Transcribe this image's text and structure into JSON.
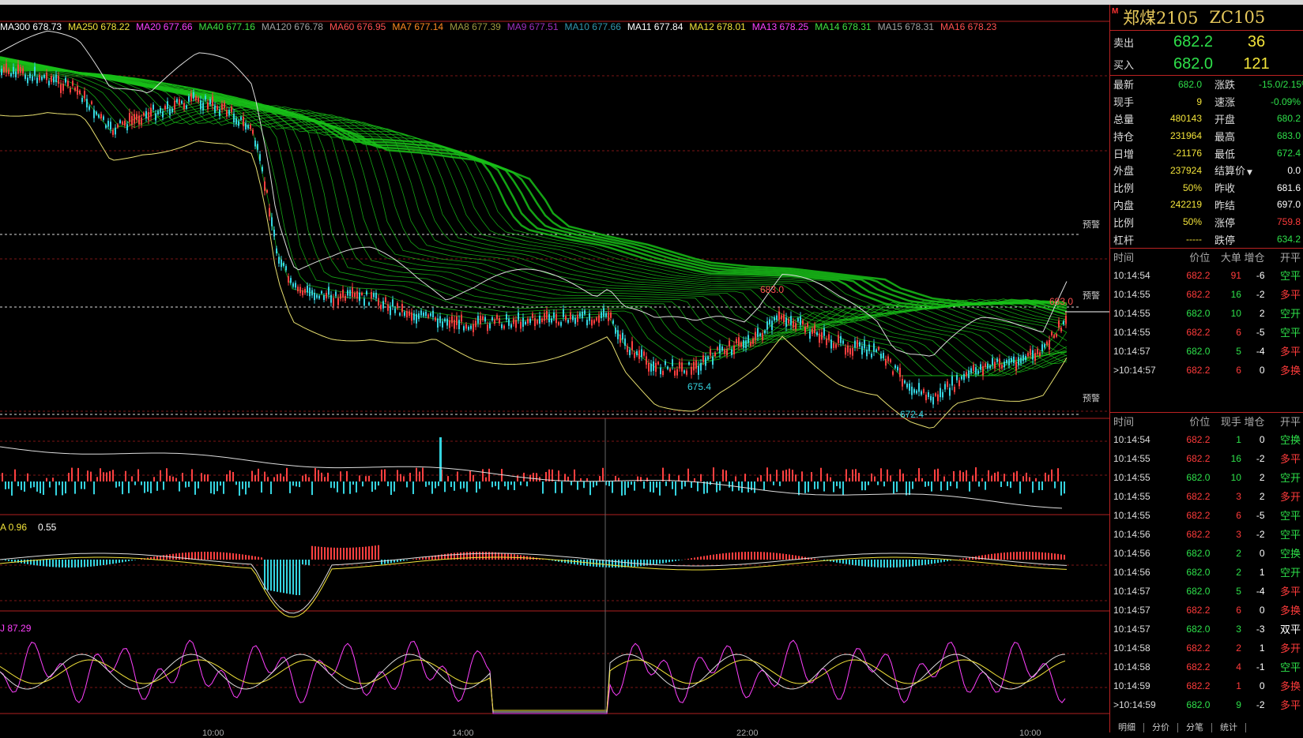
{
  "colors": {
    "background": "#000000",
    "up": "#ff4040",
    "down": "#35d4e0",
    "ma_band": "#18c018",
    "grid": "#b02020",
    "green_text": "#2ee04a",
    "red_text": "#ff3b3b",
    "yellow_text": "#f2e33a"
  },
  "chart": {
    "ma_legend": [
      {
        "label": "MA300 678.73",
        "color": "#ffffff"
      },
      {
        "label": "MA250 678.22",
        "color": "#f2e33a"
      },
      {
        "label": "MA20 677.66",
        "color": "#ff40ff"
      },
      {
        "label": "MA40 677.16",
        "color": "#40e040"
      },
      {
        "label": "MA120 676.78",
        "color": "#a0a0a0"
      },
      {
        "label": "MA60 676.95",
        "color": "#ff5050"
      },
      {
        "label": "MA7 677.14",
        "color": "#ff8a20"
      },
      {
        "label": "MA8 677.39",
        "color": "#a09a40"
      },
      {
        "label": "MA9 677.51",
        "color": "#a030c0"
      },
      {
        "label": "MA10 677.66",
        "color": "#3098b0"
      },
      {
        "label": "MA11 677.84",
        "color": "#ffffff"
      },
      {
        "label": "MA12 678.01",
        "color": "#f2e33a"
      },
      {
        "label": "MA13 678.25",
        "color": "#ff40ff"
      },
      {
        "label": "MA14 678.31",
        "color": "#40e040"
      },
      {
        "label": "MA15 678.31",
        "color": "#a0a0a0"
      },
      {
        "label": "MA16 678.23",
        "color": "#ff5050"
      }
    ],
    "alert_label": "预警",
    "peak_labels": [
      "683.0",
      "675.4",
      "672.4",
      "683.0"
    ],
    "macd_label": "A 0.96",
    "macd_value": "0.55",
    "kdj_label": "J 87.29",
    "time_ticks": [
      "10:00",
      "14:00",
      "22:00",
      "10:00"
    ]
  },
  "sidebar": {
    "marker": "M",
    "name": "郑煤2105",
    "code": "ZC105",
    "sell": {
      "label": "卖出",
      "price": "682.2",
      "vol": "36"
    },
    "buy": {
      "label": "买入",
      "price": "682.0",
      "vol": "121"
    },
    "quote": [
      {
        "l1": "最新",
        "v1": "682.0",
        "c1": "#2ee04a",
        "l2": "涨跌",
        "v2": "-15.0/2.15%",
        "c2": "#2ee04a"
      },
      {
        "l1": "现手",
        "v1": "9",
        "c1": "#f2e33a",
        "l2": "速涨",
        "v2": "-0.09%",
        "c2": "#2ee04a"
      },
      {
        "l1": "总量",
        "v1": "480143",
        "c1": "#f2e33a",
        "l2": "开盘",
        "v2": "680.2",
        "c2": "#2ee04a"
      },
      {
        "l1": "持仓",
        "v1": "231964",
        "c1": "#f2e33a",
        "l2": "最高",
        "v2": "683.0",
        "c2": "#2ee04a"
      },
      {
        "l1": "日增",
        "v1": "-21176",
        "c1": "#f2e33a",
        "l2": "最低",
        "v2": "672.4",
        "c2": "#2ee04a"
      },
      {
        "l1": "外盘",
        "v1": "237924",
        "c1": "#f2e33a",
        "l2": "结算价",
        "v2": "0.0",
        "c2": "#ffffff",
        "dropdown": true
      },
      {
        "l1": "比例",
        "v1": "50%",
        "c1": "#f2e33a",
        "l2": "昨收",
        "v2": "681.6",
        "c2": "#ffffff"
      },
      {
        "l1": "内盘",
        "v1": "242219",
        "c1": "#f2e33a",
        "l2": "昨结",
        "v2": "697.0",
        "c2": "#ffffff"
      },
      {
        "l1": "比例",
        "v1": "50%",
        "c1": "#f2e33a",
        "l2": "涨停",
        "v2": "759.8",
        "c2": "#ff3b3b"
      },
      {
        "l1": "杠杆",
        "v1": "-----",
        "c1": "#f2e33a",
        "l2": "跌停",
        "v2": "634.2",
        "c2": "#2ee04a"
      }
    ],
    "tick_headers": {
      "time": "时间",
      "price": "价位",
      "big": "大单",
      "vol": "现手",
      "chg": "增仓",
      "type": "开平"
    },
    "big_orders": [
      {
        "time": "10:14:54",
        "price": "682.2",
        "vol": "91",
        "chg": "-6",
        "type": "空平",
        "vc": "#ff3b3b"
      },
      {
        "time": "10:14:55",
        "price": "682.2",
        "vol": "16",
        "chg": "-2",
        "type": "多平",
        "vc": "#2ee04a"
      },
      {
        "time": "10:14:55",
        "price": "682.0",
        "vol": "10",
        "chg": "2",
        "type": "空开",
        "vc": "#2ee04a"
      },
      {
        "time": "10:14:55",
        "price": "682.2",
        "vol": "6",
        "chg": "-5",
        "type": "空平",
        "vc": "#ff3b3b"
      },
      {
        "time": "10:14:57",
        "price": "682.0",
        "vol": "5",
        "chg": "-4",
        "type": "多平",
        "vc": "#2ee04a"
      },
      {
        "time": ">10:14:57",
        "price": "682.2",
        "vol": "6",
        "chg": "0",
        "type": "多换",
        "vc": "#ff3b3b"
      }
    ],
    "ticks": [
      {
        "time": "10:14:54",
        "price": "682.2",
        "vol": "1",
        "chg": "0",
        "type": "空换",
        "vc": "#2ee04a"
      },
      {
        "time": "10:14:55",
        "price": "682.2",
        "vol": "16",
        "chg": "-2",
        "type": "多平",
        "vc": "#2ee04a"
      },
      {
        "time": "10:14:55",
        "price": "682.0",
        "vol": "10",
        "chg": "2",
        "type": "空开",
        "vc": "#2ee04a"
      },
      {
        "time": "10:14:55",
        "price": "682.2",
        "vol": "3",
        "chg": "2",
        "type": "多开",
        "vc": "#ff3b3b"
      },
      {
        "time": "10:14:55",
        "price": "682.2",
        "vol": "6",
        "chg": "-5",
        "type": "空平",
        "vc": "#ff3b3b"
      },
      {
        "time": "10:14:56",
        "price": "682.2",
        "vol": "3",
        "chg": "-2",
        "type": "空平",
        "vc": "#ff3b3b"
      },
      {
        "time": "10:14:56",
        "price": "682.0",
        "vol": "2",
        "chg": "0",
        "type": "空换",
        "vc": "#2ee04a"
      },
      {
        "time": "10:14:56",
        "price": "682.0",
        "vol": "2",
        "chg": "1",
        "type": "空开",
        "vc": "#2ee04a"
      },
      {
        "time": "10:14:57",
        "price": "682.0",
        "vol": "5",
        "chg": "-4",
        "type": "多平",
        "vc": "#2ee04a"
      },
      {
        "time": "10:14:57",
        "price": "682.2",
        "vol": "6",
        "chg": "0",
        "type": "多换",
        "vc": "#ff3b3b"
      },
      {
        "time": "10:14:57",
        "price": "682.0",
        "vol": "3",
        "chg": "-3",
        "type": "双平",
        "vc": "#2ee04a"
      },
      {
        "time": "10:14:58",
        "price": "682.2",
        "vol": "2",
        "chg": "1",
        "type": "多开",
        "vc": "#ff3b3b"
      },
      {
        "time": "10:14:58",
        "price": "682.2",
        "vol": "4",
        "chg": "-1",
        "type": "空平",
        "vc": "#ff3b3b"
      },
      {
        "time": "10:14:59",
        "price": "682.2",
        "vol": "1",
        "chg": "0",
        "type": "多换",
        "vc": "#ff3b3b"
      },
      {
        "time": ">10:14:59",
        "price": "682.0",
        "vol": "9",
        "chg": "-2",
        "type": "多平",
        "vc": "#2ee04a"
      }
    ],
    "bottom_tabs": [
      "明细",
      "分价",
      "分笔",
      "统计"
    ]
  }
}
